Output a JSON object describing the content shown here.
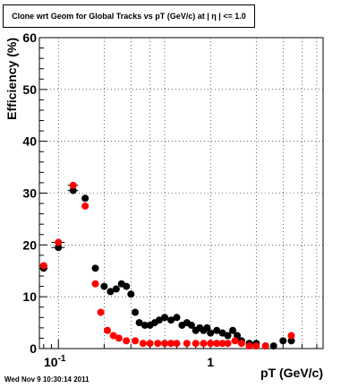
{
  "title": "Clone wrt Geom for Global Tracks vs pT (GeV/c) at |  η | <= 1.0",
  "timestamp": "Wed Nov  9 10:30:14 2011",
  "chart_data": {
    "type": "scatter",
    "title": "Clone wrt Geom for Global Tracks vs pT (GeV/c) at |  η | <= 1.0",
    "xlabel": "pT (GeV/c)",
    "ylabel": "Efficiency (%)",
    "xscale": "log",
    "xlim": [
      0.075,
      5.5
    ],
    "ylim": [
      0,
      60
    ],
    "yticks": [
      0,
      10,
      20,
      30,
      40,
      50,
      60
    ],
    "xtick_labels": [
      {
        "value": 0.1,
        "base": "10",
        "exp": "-1"
      },
      {
        "value": 1,
        "base": "1",
        "exp": ""
      }
    ],
    "grid": true,
    "colors": {
      "series_black": "#000000",
      "series_red": "#ff0000"
    },
    "series": [
      {
        "color": "#000000",
        "points": [
          {
            "x": 0.08,
            "y": 15.5,
            "xerr": 0.005
          },
          {
            "x": 0.1,
            "y": 19.5,
            "xerr": 0.01
          },
          {
            "x": 0.125,
            "y": 30.5,
            "xerr": 0.01
          },
          {
            "x": 0.15,
            "y": 29,
            "xerr": 0
          },
          {
            "x": 0.175,
            "y": 15.5,
            "xerr": 0
          },
          {
            "x": 0.2,
            "y": 12,
            "xerr": 0
          },
          {
            "x": 0.22,
            "y": 11,
            "xerr": 0
          },
          {
            "x": 0.24,
            "y": 11.5,
            "xerr": 0
          },
          {
            "x": 0.26,
            "y": 12.5,
            "xerr": 0
          },
          {
            "x": 0.28,
            "y": 12,
            "xerr": 0
          },
          {
            "x": 0.3,
            "y": 10.5,
            "xerr": 0
          },
          {
            "x": 0.32,
            "y": 7,
            "xerr": 0
          },
          {
            "x": 0.34,
            "y": 5,
            "xerr": 0
          },
          {
            "x": 0.37,
            "y": 4.5,
            "xerr": 0
          },
          {
            "x": 0.4,
            "y": 4.5,
            "xerr": 0
          },
          {
            "x": 0.43,
            "y": 5,
            "xerr": 0
          },
          {
            "x": 0.46,
            "y": 5.5,
            "xerr": 0
          },
          {
            "x": 0.5,
            "y": 6,
            "xerr": 0
          },
          {
            "x": 0.55,
            "y": 5.5,
            "xerr": 0
          },
          {
            "x": 0.6,
            "y": 6,
            "xerr": 0
          },
          {
            "x": 0.65,
            "y": 4.5,
            "xerr": 0
          },
          {
            "x": 0.7,
            "y": 5,
            "xerr": 0
          },
          {
            "x": 0.75,
            "y": 4.5,
            "xerr": 0
          },
          {
            "x": 0.8,
            "y": 3.5,
            "xerr": 0
          },
          {
            "x": 0.85,
            "y": 4,
            "xerr": 0
          },
          {
            "x": 0.9,
            "y": 3.5,
            "xerr": 0
          },
          {
            "x": 0.95,
            "y": 4,
            "xerr": 0
          },
          {
            "x": 1.0,
            "y": 3,
            "xerr": 0
          },
          {
            "x": 1.1,
            "y": 3.5,
            "xerr": 0
          },
          {
            "x": 1.2,
            "y": 3,
            "xerr": 0
          },
          {
            "x": 1.3,
            "y": 2.5,
            "xerr": 0
          },
          {
            "x": 1.4,
            "y": 3.5,
            "xerr": 0
          },
          {
            "x": 1.5,
            "y": 2.5,
            "xerr": 0
          },
          {
            "x": 1.6,
            "y": 1.5,
            "xerr": 0
          },
          {
            "x": 1.8,
            "y": 1,
            "xerr": 0
          },
          {
            "x": 2.0,
            "y": 1,
            "xerr": 0
          },
          {
            "x": 2.3,
            "y": 0.5,
            "xerr": 0
          },
          {
            "x": 2.6,
            "y": 0.5,
            "xerr": 0
          },
          {
            "x": 3.0,
            "y": 1.5,
            "xerr": 0
          },
          {
            "x": 3.4,
            "y": 1.5,
            "xerr": 0
          }
        ]
      },
      {
        "color": "#ff0000",
        "points": [
          {
            "x": 0.08,
            "y": 16,
            "xerr": 0.005
          },
          {
            "x": 0.1,
            "y": 20.5,
            "xerr": 0.01
          },
          {
            "x": 0.125,
            "y": 31.5,
            "xerr": 0.01
          },
          {
            "x": 0.15,
            "y": 27.5,
            "xerr": 0
          },
          {
            "x": 0.175,
            "y": 12.5,
            "xerr": 0
          },
          {
            "x": 0.19,
            "y": 7,
            "xerr": 0
          },
          {
            "x": 0.21,
            "y": 3.5,
            "xerr": 0
          },
          {
            "x": 0.23,
            "y": 2.5,
            "xerr": 0
          },
          {
            "x": 0.25,
            "y": 2,
            "xerr": 0
          },
          {
            "x": 0.28,
            "y": 1.5,
            "xerr": 0
          },
          {
            "x": 0.32,
            "y": 1.5,
            "xerr": 0
          },
          {
            "x": 0.36,
            "y": 1,
            "xerr": 0
          },
          {
            "x": 0.4,
            "y": 1,
            "xerr": 0
          },
          {
            "x": 0.45,
            "y": 1,
            "xerr": 0
          },
          {
            "x": 0.5,
            "y": 1,
            "xerr": 0
          },
          {
            "x": 0.55,
            "y": 1,
            "xerr": 0
          },
          {
            "x": 0.6,
            "y": 1,
            "xerr": 0
          },
          {
            "x": 0.7,
            "y": 1,
            "xerr": 0
          },
          {
            "x": 0.8,
            "y": 1,
            "xerr": 0
          },
          {
            "x": 0.9,
            "y": 1,
            "xerr": 0
          },
          {
            "x": 1.0,
            "y": 1,
            "xerr": 0
          },
          {
            "x": 1.1,
            "y": 1,
            "xerr": 0
          },
          {
            "x": 1.2,
            "y": 1,
            "xerr": 0
          },
          {
            "x": 1.3,
            "y": 1,
            "xerr": 0
          },
          {
            "x": 1.45,
            "y": 1.5,
            "xerr": 0
          },
          {
            "x": 1.6,
            "y": 1,
            "xerr": 0
          },
          {
            "x": 1.8,
            "y": 0.5,
            "xerr": 0
          },
          {
            "x": 2.0,
            "y": 0.5,
            "xerr": 0
          },
          {
            "x": 2.3,
            "y": 0.5,
            "xerr": 0
          },
          {
            "x": 3.4,
            "y": 2.5,
            "xerr": 0
          }
        ]
      }
    ]
  }
}
